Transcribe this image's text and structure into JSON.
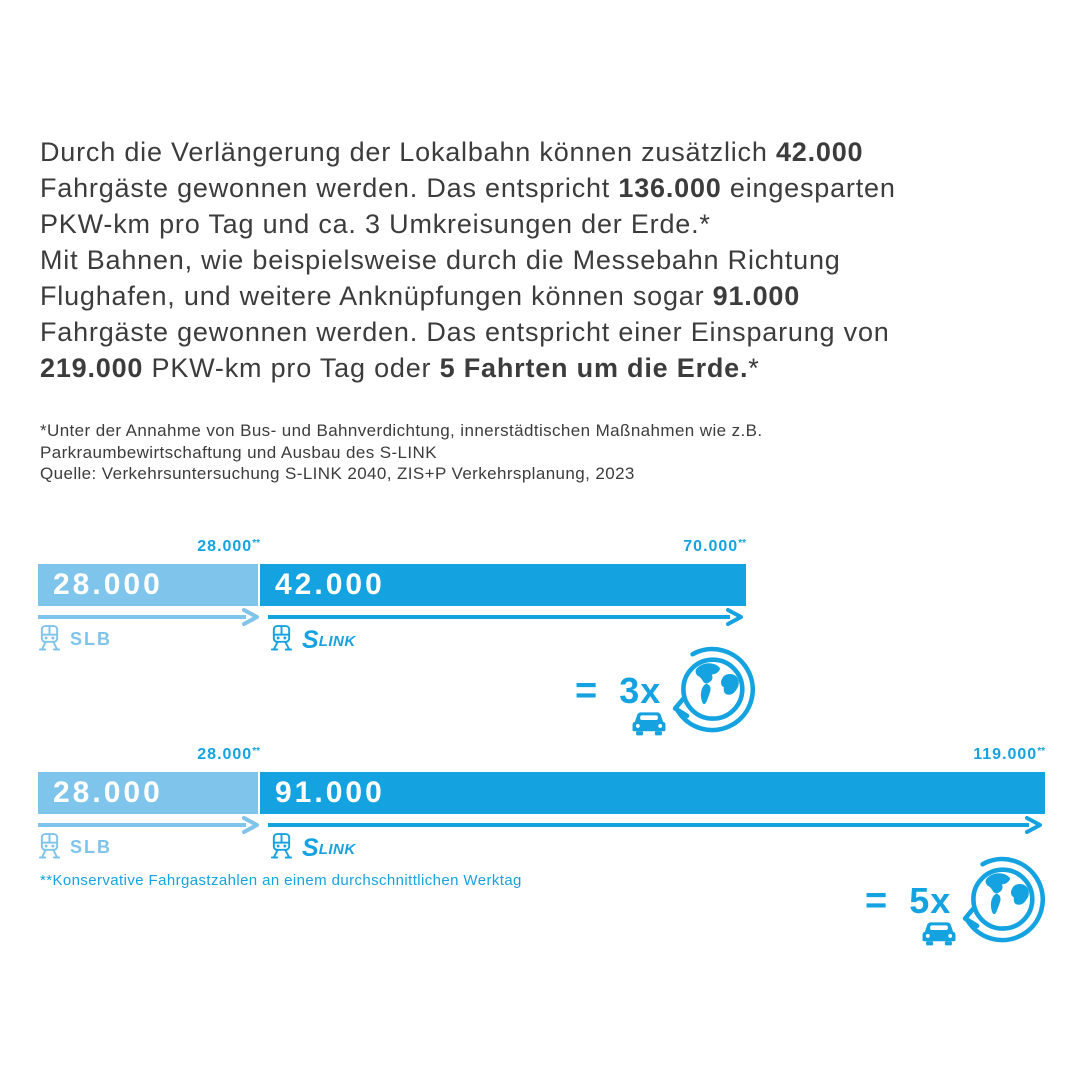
{
  "colors": {
    "dark_blue": "#14A3E0",
    "light_blue": "#7FC4EA",
    "text_gray": "#3C3C3C",
    "bar_text_white": "#FFFFFF"
  },
  "intro": {
    "segments": [
      {
        "t": "Durch die Verlängerung der Lokalbahn können zusätzlich "
      },
      {
        "t": "42.000",
        "b": true
      },
      {
        "br": true
      },
      {
        "t": "Fahrgäste gewonnen werden. Das entspricht "
      },
      {
        "t": "136.000",
        "b": true
      },
      {
        "t": " eingesparten"
      },
      {
        "br": true
      },
      {
        "t": "PKW-km pro Tag und ca. 3 Umkreisungen der Erde.*"
      },
      {
        "br": true
      },
      {
        "t": "Mit Bahnen, wie beispielsweise durch die Messebahn Richtung"
      },
      {
        "br": true
      },
      {
        "t": "Flughafen, und weitere Anknüpfungen können sogar "
      },
      {
        "t": "91.000",
        "b": true
      },
      {
        "br": true
      },
      {
        "t": "Fahrgäste gewonnen werden. Das entspricht einer Einsparung von"
      },
      {
        "br": true
      },
      {
        "t": "219.000",
        "b": true
      },
      {
        "t": " PKW-km pro Tag oder "
      },
      {
        "t": "5 Fahrten um die Erde.",
        "b": true
      },
      {
        "t": "*"
      }
    ]
  },
  "footnote": {
    "lines": [
      "*Unter der Annahme von Bus- und Bahnverdichtung, innerstädtischen Maßnahmen wie z.B.",
      "Parkraumbewirtschaftung und Ausbau des S-LINK",
      "Quelle: Verkehrsuntersuchung S-LINK 2040, ZIS+P Verkehrsplanung, 2023"
    ]
  },
  "charts": [
    {
      "label_left": {
        "value": "28.000",
        "sup": "**"
      },
      "label_right": {
        "value": "70.000",
        "sup": "**"
      },
      "bar": {
        "left_value": "28.000",
        "right_value": "42.000"
      },
      "legend": {
        "slb_label": "SLB",
        "slink_s": "S",
        "slink_rest": "LINK"
      },
      "equivalence": {
        "equals": "=",
        "multiplier": "3x"
      }
    },
    {
      "label_left": {
        "value": "28.000",
        "sup": "**"
      },
      "label_right": {
        "value": "119.000",
        "sup": "**"
      },
      "bar": {
        "left_value": "28.000",
        "right_value": "91.000"
      },
      "legend": {
        "slb_label": "SLB",
        "slink_s": "S",
        "slink_rest": "LINK"
      },
      "equivalence": {
        "equals": "=",
        "multiplier": "5x"
      }
    }
  ],
  "chart_footnote": "**Konservative Fahrgastzahlen an einem durchschnittlichen Werktag",
  "chart_data": [
    {
      "type": "bar",
      "orientation": "horizontal",
      "stacked": true,
      "categories": [
        "SLB",
        "S-LINK"
      ],
      "values": [
        28000,
        42000
      ],
      "total": 70000,
      "annotations": [
        "28.000**",
        "70.000**"
      ],
      "segment_labels": [
        "28.000",
        "42.000"
      ],
      "equivalence": "= 3x Fahrten um die Erde (Auto)",
      "legend_position": "below",
      "unit": "Fahrgäste pro Werktag"
    },
    {
      "type": "bar",
      "orientation": "horizontal",
      "stacked": true,
      "categories": [
        "SLB",
        "S-LINK"
      ],
      "values": [
        28000,
        91000
      ],
      "total": 119000,
      "annotations": [
        "28.000**",
        "119.000**"
      ],
      "segment_labels": [
        "28.000",
        "91.000"
      ],
      "equivalence": "= 5x Fahrten um die Erde (Auto)",
      "legend_position": "below",
      "unit": "Fahrgäste pro Werktag"
    }
  ]
}
